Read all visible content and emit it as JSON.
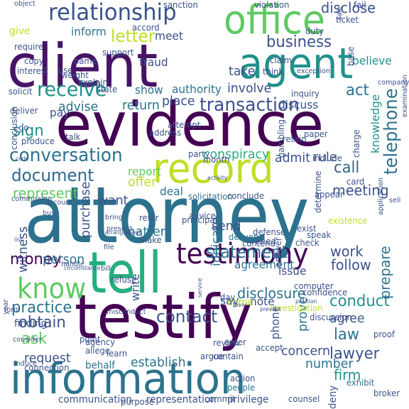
{
  "title": "",
  "palette": {
    "dark_purple": "#440154",
    "indigo": "#3b528b",
    "blue": "#2c728e",
    "teal": "#21918c",
    "green": "#27ad81",
    "lime": "#5ec962",
    "yellow": "#bddf26"
  },
  "words": [
    {
      "text": "attorney",
      "color": "#2c728e",
      "rot": 0
    },
    {
      "text": "evidence",
      "color": "#440154",
      "rot": 0
    },
    {
      "text": "client",
      "color": "#471365",
      "rot": 0
    },
    {
      "text": "testify",
      "color": "#440154",
      "rot": 0
    },
    {
      "text": "information",
      "color": "#2c728e",
      "rot": 0
    },
    {
      "text": "record",
      "color": "#bddf26",
      "rot": 0
    },
    {
      "text": "tell",
      "color": "#27ad81",
      "rot": 0
    },
    {
      "text": "agent",
      "color": "#21918c",
      "rot": 0
    },
    {
      "text": "office",
      "color": "#5ec962",
      "rot": 0
    },
    {
      "text": "relationship",
      "color": "#3b528b",
      "rot": 0
    },
    {
      "text": "testimony",
      "color": "#440154",
      "rot": 0
    },
    {
      "text": "know",
      "color": "#5ec962",
      "rot": 0
    },
    {
      "text": "conversation",
      "color": "#2c728e",
      "rot": 0
    },
    {
      "text": "receive",
      "color": "#21918c",
      "rot": 0
    },
    {
      "text": "transaction",
      "color": "#3b528b",
      "rot": 0
    },
    {
      "text": "telephone",
      "color": "#2c728e",
      "rot": 270
    },
    {
      "text": "document",
      "color": "#31688e",
      "rot": 0
    },
    {
      "text": "letter",
      "color": "#bddf26",
      "rot": 0
    },
    {
      "text": "business",
      "color": "#3b528b",
      "rot": 0
    },
    {
      "text": "give",
      "color": "#bddf26",
      "rot": 0
    },
    {
      "text": "statement",
      "color": "#2c728e",
      "rot": 0
    },
    {
      "text": "contact",
      "color": "#3b528b",
      "rot": 0
    },
    {
      "text": "money",
      "color": "#440154",
      "rot": 0
    },
    {
      "text": "practice",
      "color": "#2c728e",
      "rot": 0
    },
    {
      "text": "obtain",
      "color": "#3b528b",
      "rot": 0
    },
    {
      "text": "conduct",
      "color": "#21918c",
      "rot": 0
    },
    {
      "text": "ask",
      "color": "#5ec962",
      "rot": 0
    },
    {
      "text": "disclosure",
      "color": "#2c728e",
      "rot": 0
    },
    {
      "text": "lawyer",
      "color": "#3b528b",
      "rot": 0
    },
    {
      "text": "law",
      "color": "#2c728e",
      "rot": 0
    },
    {
      "text": "firm",
      "color": "#21918c",
      "rot": 0
    },
    {
      "text": "call",
      "color": "#31688e",
      "rot": 0
    },
    {
      "text": "sign",
      "color": "#21918c",
      "rot": 0
    },
    {
      "text": "act",
      "color": "#2c728e",
      "rot": 0
    },
    {
      "text": "disclose",
      "color": "#3b528b",
      "rot": 0
    },
    {
      "text": "knowledge",
      "color": "#21918c",
      "rot": 270
    },
    {
      "text": "believe",
      "color": "#21918c",
      "rot": 0
    },
    {
      "text": "meeting",
      "color": "#3b528b",
      "rot": 0
    },
    {
      "text": "prepare",
      "color": "#2c728e",
      "rot": 270
    },
    {
      "text": "work",
      "color": "#3b528b",
      "rot": 0
    },
    {
      "text": "follow",
      "color": "#3b528b",
      "rot": 0
    },
    {
      "text": "represent",
      "color": "#5ec962",
      "rot": 0
    },
    {
      "text": "request",
      "color": "#3b528b",
      "rot": 0
    },
    {
      "text": "establish",
      "color": "#2c728e",
      "rot": 0
    },
    {
      "text": "concern",
      "color": "#3b528b",
      "rot": 0
    },
    {
      "text": "agree",
      "color": "#3b528b",
      "rot": 0
    },
    {
      "text": "prove",
      "color": "#2c728e",
      "rot": 270
    },
    {
      "text": "number",
      "color": "#2c728e",
      "rot": 0
    },
    {
      "text": "purchase",
      "color": "#3b528b",
      "rot": 270
    },
    {
      "text": "witness",
      "color": "#3b528b",
      "rot": 270
    },
    {
      "text": "person",
      "color": "#2c728e",
      "rot": 0
    },
    {
      "text": "want",
      "color": "#3b528b",
      "rot": 0
    },
    {
      "text": "matter",
      "color": "#2c728e",
      "rot": 0
    },
    {
      "text": "indicate",
      "color": "#2c728e",
      "rot": 270
    },
    {
      "text": "send",
      "color": "#3b528b",
      "rot": 0
    },
    {
      "text": "conspiracy",
      "color": "#27ad81",
      "rot": 0
    },
    {
      "text": "admit",
      "color": "#3b528b",
      "rot": 0
    },
    {
      "text": "rule",
      "color": "#3b528b",
      "rot": 0
    },
    {
      "text": "involve",
      "color": "#3b528b",
      "rot": 0
    },
    {
      "text": "discuss",
      "color": "#3b528b",
      "rot": 0
    },
    {
      "text": "place",
      "color": "#3b528b",
      "rot": 0
    },
    {
      "text": "return",
      "color": "#2c728e",
      "rot": 0
    },
    {
      "text": "advise",
      "color": "#2c728e",
      "rot": 0
    },
    {
      "text": "take",
      "color": "#3b528b",
      "rot": 0
    },
    {
      "text": "show",
      "color": "#2c728e",
      "rot": 0
    },
    {
      "text": "authority",
      "color": "#2c728e",
      "rot": 0
    },
    {
      "text": "fraud",
      "color": "#3b528b",
      "rot": 0
    },
    {
      "text": "meet",
      "color": "#3b528b",
      "rot": 0
    },
    {
      "text": "inform",
      "color": "#2c728e",
      "rot": 0
    },
    {
      "text": "pay",
      "color": "#3b528b",
      "rot": 0
    },
    {
      "text": "offer",
      "color": "#bddf26",
      "rot": 0
    },
    {
      "text": "report",
      "color": "#5ec962",
      "rot": 0
    },
    {
      "text": "deal",
      "color": "#2c728e",
      "rot": 0
    },
    {
      "text": "issue",
      "color": "#3b528b",
      "rot": 0
    },
    {
      "text": "say",
      "color": "#3b528b",
      "rot": 0
    },
    {
      "text": "note",
      "color": "#3b528b",
      "rot": 0
    },
    {
      "text": "phone",
      "color": "#3b528b",
      "rot": 270
    },
    {
      "text": "write",
      "color": "#3b528b",
      "rot": 270
    },
    {
      "text": "agreement",
      "color": "#2c728e",
      "rot": 0
    },
    {
      "text": "finding",
      "color": "#3b528b",
      "rot": 0
    },
    {
      "text": "come",
      "color": "#bddf26",
      "rot": 0
    },
    {
      "text": "communication",
      "color": "#3b528b",
      "rot": 0
    },
    {
      "text": "representation",
      "color": "#3b528b",
      "rot": 0
    },
    {
      "text": "privilege",
      "color": "#3b528b",
      "rot": 0
    },
    {
      "text": "commit",
      "color": "#3b528b",
      "rot": 0
    },
    {
      "text": "deny",
      "color": "#3b528b",
      "rot": 270
    },
    {
      "text": "counsel",
      "color": "#3b528b",
      "rot": 0
    },
    {
      "text": "behalf",
      "color": "#2c728e",
      "rot": 0
    },
    {
      "text": "connection",
      "color": "#3b528b",
      "rot": 0
    },
    {
      "text": "agency",
      "color": "#3b528b",
      "rot": 0
    },
    {
      "text": "allege",
      "color": "#3b528b",
      "rot": 0
    },
    {
      "text": "induce",
      "color": "#3b528b",
      "rot": 0
    },
    {
      "text": "learn",
      "color": "#3b528b",
      "rot": 0
    },
    {
      "text": "point",
      "color": "#3b528b",
      "rot": 0
    },
    {
      "text": "purpose",
      "color": "#3b528b",
      "rot": 0
    },
    {
      "text": "action",
      "color": "#3b528b",
      "rot": 0
    },
    {
      "text": "people",
      "color": "#2c728e",
      "rot": 0
    },
    {
      "text": "proof",
      "color": "#3b528b",
      "rot": 0
    },
    {
      "text": "exhibit",
      "color": "#2c728e",
      "rot": 0
    },
    {
      "text": "broker",
      "color": "#3b528b",
      "rot": 0
    },
    {
      "text": "argue",
      "color": "#3b528b",
      "rot": 0
    },
    {
      "text": "enter",
      "color": "#3b528b",
      "rot": 0
    },
    {
      "text": "accept",
      "color": "#3b528b",
      "rot": 0
    },
    {
      "text": "review",
      "color": "#3b528b",
      "rot": 0
    },
    {
      "text": "contain",
      "color": "#3b528b",
      "rot": 0
    },
    {
      "text": "day",
      "color": "#3b528b",
      "rot": 0
    },
    {
      "text": "investigation",
      "color": "#bddf26",
      "rot": 0
    },
    {
      "text": "discussion",
      "color": "#3b528b",
      "rot": 0
    },
    {
      "text": "consider",
      "color": "#3b528b",
      "rot": 0
    },
    {
      "text": "year",
      "color": "#3b528b",
      "rot": 270
    },
    {
      "text": "form",
      "color": "#3b528b",
      "rot": 0
    },
    {
      "text": "misconduct",
      "color": "#3b528b",
      "rot": 0
    },
    {
      "text": "refuse",
      "color": "#3b528b",
      "rot": 0
    },
    {
      "text": "bill",
      "color": "#3b528b",
      "rot": 0
    },
    {
      "text": "confidence",
      "color": "#3b528b",
      "rot": 0
    },
    {
      "text": "computer",
      "color": "#3b528b",
      "rot": 0
    },
    {
      "text": "check",
      "color": "#3b528b",
      "rot": 0
    },
    {
      "text": "speak",
      "color": "#3b528b",
      "rot": 0
    },
    {
      "text": "exist",
      "color": "#3b528b",
      "rot": 0
    },
    {
      "text": "existence",
      "color": "#bddf26",
      "rot": 0
    },
    {
      "text": "appear",
      "color": "#3b528b",
      "rot": 0
    },
    {
      "text": "defense",
      "color": "#3b528b",
      "rot": 0
    },
    {
      "text": "delivery",
      "color": "#2c728e",
      "rot": 0
    },
    {
      "text": "contend",
      "color": "#3b528b",
      "rot": 0
    },
    {
      "text": "need",
      "color": "#3b528b",
      "rot": 0
    },
    {
      "text": "answer",
      "color": "#3b528b",
      "rot": 270
    },
    {
      "text": "principal",
      "color": "#3b528b",
      "rot": 0
    },
    {
      "text": "make",
      "color": "#3b528b",
      "rot": 0
    },
    {
      "text": "handle",
      "color": "#3b528b",
      "rot": 0
    },
    {
      "text": "file",
      "color": "#3b528b",
      "rot": 0
    },
    {
      "text": "present",
      "color": "#3b528b",
      "rot": 0
    },
    {
      "text": "bring",
      "color": "#3b528b",
      "rot": 0
    },
    {
      "text": "refer",
      "color": "#3b528b",
      "rot": 0
    },
    {
      "text": "solicitation",
      "color": "#2c728e",
      "rot": 0
    },
    {
      "text": "conclude",
      "color": "#3b528b",
      "rot": 0
    },
    {
      "text": "advice",
      "color": "#3b528b",
      "rot": 0
    },
    {
      "text": "account",
      "color": "#3b528b",
      "rot": 0
    },
    {
      "text": "buy",
      "color": "#3b528b",
      "rot": 0
    },
    {
      "text": "party",
      "color": "#3b528b",
      "rot": 0
    },
    {
      "text": "month",
      "color": "#3b528b",
      "rot": 0
    },
    {
      "text": "address",
      "color": "#3b528b",
      "rot": 0
    },
    {
      "text": "talk",
      "color": "#3b528b",
      "rot": 0
    },
    {
      "text": "produce",
      "color": "#3b528b",
      "rot": 0
    },
    {
      "text": "go",
      "color": "#3b528b",
      "rot": 0
    },
    {
      "text": "conclusion",
      "color": "#3b528b",
      "rot": 270
    },
    {
      "text": "solicit",
      "color": "#3b528b",
      "rot": 0
    },
    {
      "text": "deliver",
      "color": "#3b528b",
      "rot": 0
    },
    {
      "text": "state",
      "color": "#3b528b",
      "rot": 0
    },
    {
      "text": "explain",
      "color": "#3b528b",
      "rot": 0
    },
    {
      "text": "inquiry",
      "color": "#3b528b",
      "rot": 0
    },
    {
      "text": "retain",
      "color": "#3b528b",
      "rot": 0
    },
    {
      "text": "paper",
      "color": "#3b528b",
      "rot": 0
    },
    {
      "text": "charge",
      "color": "#3b528b",
      "rot": 270
    },
    {
      "text": "application",
      "color": "#3b528b",
      "rot": 270
    },
    {
      "text": "sell",
      "color": "#3b528b",
      "rot": 0
    },
    {
      "text": "include",
      "color": "#3b528b",
      "rot": 0
    },
    {
      "text": "card",
      "color": "#3b528b",
      "rot": 0
    },
    {
      "text": "determine",
      "color": "#3b528b",
      "rot": 270
    },
    {
      "text": "gambling",
      "color": "#3b528b",
      "rot": 270
    },
    {
      "text": "attempt",
      "color": "#3b528b",
      "rot": 0
    },
    {
      "text": "weight",
      "color": "#3b528b",
      "rot": 0
    },
    {
      "text": "keep",
      "color": "#3b528b",
      "rot": 0
    },
    {
      "text": "use",
      "color": "#3b528b",
      "rot": 0
    },
    {
      "text": "name",
      "color": "#3b528b",
      "rot": 0
    },
    {
      "text": "support",
      "color": "#3b528b",
      "rot": 0
    },
    {
      "text": "copy",
      "color": "#3b528b",
      "rot": 0
    },
    {
      "text": "interest",
      "color": "#3b528b",
      "rot": 0
    },
    {
      "text": "require",
      "color": "#3b528b",
      "rot": 0
    },
    {
      "text": "commission",
      "color": "#3b528b",
      "rot": 0
    },
    {
      "text": "accord",
      "color": "#3b528b",
      "rot": 0
    },
    {
      "text": "claim",
      "color": "#3b528b",
      "rot": 0
    },
    {
      "text": "think",
      "color": "#3b528b",
      "rot": 0
    },
    {
      "text": "duty",
      "color": "#3b528b",
      "rot": 0
    },
    {
      "text": "ticket",
      "color": "#3b528b",
      "rot": 0
    },
    {
      "text": "fail",
      "color": "#3b528b",
      "rot": 0
    },
    {
      "text": "base",
      "color": "#3b528b",
      "rot": 270
    },
    {
      "text": "examination",
      "color": "#3b528b",
      "rot": 270
    },
    {
      "text": "company",
      "color": "#3b528b",
      "rot": 0
    },
    {
      "text": "violation",
      "color": "#3b528b",
      "rot": 0
    },
    {
      "text": "sanction",
      "color": "#3b528b",
      "rot": 0
    },
    {
      "text": "object",
      "color": "#3b528b",
      "rot": 0
    },
    {
      "text": "exception",
      "color": "#3b528b",
      "rot": 0
    },
    {
      "text": "code",
      "color": "#3b528b",
      "rot": 0
    },
    {
      "text": "activity",
      "color": "#3b528b",
      "rot": 0
    },
    {
      "text": "arrangement",
      "color": "#3b528b",
      "rot": 0
    },
    {
      "text": "list",
      "color": "#3b528b",
      "rot": 0
    },
    {
      "text": "circumstance",
      "color": "#3b528b",
      "rot": 0
    },
    {
      "text": "service",
      "color": "#3b528b",
      "rot": 270
    },
    {
      "text": "position",
      "color": "#3b528b",
      "rot": 0
    },
    {
      "text": "favor",
      "color": "#3b528b",
      "rot": 0
    },
    {
      "text": "sale",
      "color": "#3b528b",
      "rot": 270
    },
    {
      "text": "prevent",
      "color": "#3b528b",
      "rot": 0
    }
  ]
}
